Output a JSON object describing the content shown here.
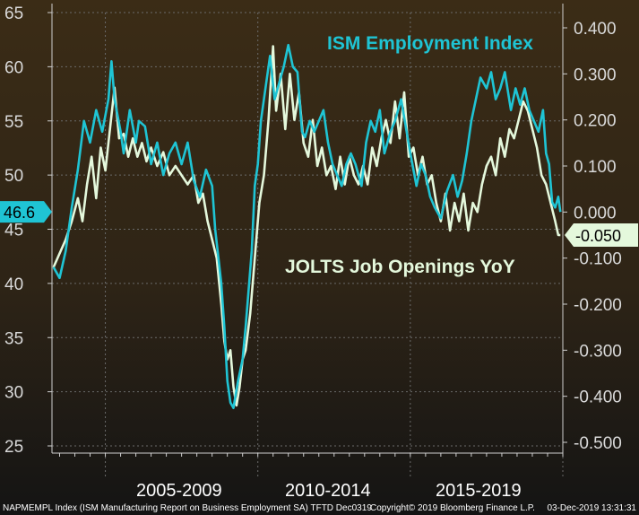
{
  "chart_data": {
    "type": "line",
    "title": "",
    "x_groups": [
      "2005-2009",
      "2010-2014",
      "2015-2019"
    ],
    "x_range": [
      2003.25,
      2020.0
    ],
    "left_axis": {
      "ticks": [
        "65",
        "60",
        "55",
        "50",
        "45",
        "40",
        "35",
        "30",
        "25"
      ],
      "range": [
        25,
        65
      ]
    },
    "right_axis": {
      "ticks": [
        "0.400",
        "0.300",
        "0.200",
        "0.100",
        "0.000",
        "-0.100",
        "-0.200",
        "-0.300",
        "-0.400",
        "-0.500"
      ],
      "range": [
        -0.5,
        0.4
      ]
    },
    "series": [
      {
        "name": "ISM Employment Index",
        "axis": "left",
        "color": "#1fc4d4",
        "last_value_label": "46.6",
        "points": [
          [
            2003.3,
            41.5
          ],
          [
            2003.5,
            40.5
          ],
          [
            2003.7,
            43
          ],
          [
            2003.9,
            47
          ],
          [
            2004.1,
            50.5
          ],
          [
            2004.3,
            55
          ],
          [
            2004.5,
            53
          ],
          [
            2004.7,
            56
          ],
          [
            2004.9,
            54
          ],
          [
            2005.1,
            57
          ],
          [
            2005.2,
            60.5
          ],
          [
            2005.3,
            57
          ],
          [
            2005.5,
            54
          ],
          [
            2005.6,
            52
          ],
          [
            2005.8,
            56
          ],
          [
            2006.0,
            53
          ],
          [
            2006.1,
            55
          ],
          [
            2006.3,
            54.5
          ],
          [
            2006.5,
            51
          ],
          [
            2006.7,
            53
          ],
          [
            2006.9,
            50
          ],
          [
            2007.1,
            52
          ],
          [
            2007.3,
            53
          ],
          [
            2007.5,
            51
          ],
          [
            2007.7,
            53
          ],
          [
            2007.9,
            49.5
          ],
          [
            2008.1,
            48
          ],
          [
            2008.3,
            50.5
          ],
          [
            2008.5,
            49
          ],
          [
            2008.6,
            45
          ],
          [
            2008.8,
            40
          ],
          [
            2008.9,
            36
          ],
          [
            2009.0,
            31
          ],
          [
            2009.1,
            29
          ],
          [
            2009.2,
            28.5
          ],
          [
            2009.35,
            31
          ],
          [
            2009.5,
            33
          ],
          [
            2009.6,
            36
          ],
          [
            2009.8,
            43
          ],
          [
            2009.9,
            49
          ],
          [
            2010.0,
            51
          ],
          [
            2010.1,
            55
          ],
          [
            2010.25,
            58
          ],
          [
            2010.4,
            61
          ],
          [
            2010.55,
            57
          ],
          [
            2010.7,
            58.5
          ],
          [
            2010.85,
            60
          ],
          [
            2011.0,
            62
          ],
          [
            2011.15,
            60
          ],
          [
            2011.3,
            59.5
          ],
          [
            2011.45,
            54
          ],
          [
            2011.55,
            53.5
          ],
          [
            2011.7,
            55
          ],
          [
            2011.85,
            54
          ],
          [
            2012.0,
            55
          ],
          [
            2012.15,
            56
          ],
          [
            2012.3,
            53
          ],
          [
            2012.45,
            51
          ],
          [
            2012.6,
            50
          ],
          [
            2012.75,
            49
          ],
          [
            2012.9,
            51
          ],
          [
            2013.05,
            52
          ],
          [
            2013.2,
            51
          ],
          [
            2013.4,
            49
          ],
          [
            2013.55,
            53
          ],
          [
            2013.7,
            55
          ],
          [
            2013.85,
            54
          ],
          [
            2014.0,
            56
          ],
          [
            2014.15,
            52
          ],
          [
            2014.35,
            54
          ],
          [
            2014.5,
            55
          ],
          [
            2014.7,
            57
          ],
          [
            2014.85,
            54.5
          ],
          [
            2015.0,
            52
          ],
          [
            2015.2,
            49
          ],
          [
            2015.35,
            51
          ],
          [
            2015.5,
            50
          ],
          [
            2015.65,
            48
          ],
          [
            2015.8,
            47
          ],
          [
            2016.0,
            46
          ],
          [
            2016.2,
            48.5
          ],
          [
            2016.4,
            50
          ],
          [
            2016.55,
            48
          ],
          [
            2016.7,
            49.5
          ],
          [
            2016.85,
            52
          ],
          [
            2017.0,
            55
          ],
          [
            2017.15,
            57
          ],
          [
            2017.3,
            59
          ],
          [
            2017.5,
            58
          ],
          [
            2017.65,
            59.5
          ],
          [
            2017.8,
            57
          ],
          [
            2017.95,
            58
          ],
          [
            2018.1,
            59.5
          ],
          [
            2018.3,
            56
          ],
          [
            2018.45,
            58
          ],
          [
            2018.6,
            56.5
          ],
          [
            2018.75,
            58
          ],
          [
            2018.9,
            56
          ],
          [
            2019.05,
            55
          ],
          [
            2019.2,
            54
          ],
          [
            2019.35,
            56
          ],
          [
            2019.45,
            52
          ],
          [
            2019.55,
            51
          ],
          [
            2019.65,
            47.5
          ],
          [
            2019.75,
            47
          ],
          [
            2019.85,
            48
          ],
          [
            2019.92,
            46.6
          ]
        ]
      },
      {
        "name": "JOLTS Job Openings YoY",
        "axis": "right",
        "color": "#e4f8dc",
        "last_value_label": "-0.050",
        "points": [
          [
            2003.3,
            -0.12
          ],
          [
            2003.5,
            -0.09
          ],
          [
            2003.7,
            -0.06
          ],
          [
            2003.9,
            -0.02
          ],
          [
            2004.1,
            0.03
          ],
          [
            2004.25,
            -0.02
          ],
          [
            2004.4,
            0.06
          ],
          [
            2004.55,
            0.12
          ],
          [
            2004.7,
            0.03
          ],
          [
            2004.85,
            0.14
          ],
          [
            2005.0,
            0.09
          ],
          [
            2005.15,
            0.18
          ],
          [
            2005.3,
            0.27
          ],
          [
            2005.45,
            0.16
          ],
          [
            2005.6,
            0.17
          ],
          [
            2005.75,
            0.12
          ],
          [
            2005.9,
            0.16
          ],
          [
            2006.05,
            0.12
          ],
          [
            2006.2,
            0.15
          ],
          [
            2006.35,
            0.11
          ],
          [
            2006.5,
            0.14
          ],
          [
            2006.7,
            0.1
          ],
          [
            2006.9,
            0.13
          ],
          [
            2007.1,
            0.08
          ],
          [
            2007.3,
            0.1
          ],
          [
            2007.5,
            0.08
          ],
          [
            2007.7,
            0.06
          ],
          [
            2007.9,
            0.08
          ],
          [
            2008.05,
            0.02
          ],
          [
            2008.2,
            0.04
          ],
          [
            2008.35,
            -0.02
          ],
          [
            2008.5,
            -0.06
          ],
          [
            2008.65,
            -0.1
          ],
          [
            2008.8,
            -0.2
          ],
          [
            2008.9,
            -0.28
          ],
          [
            2009.0,
            -0.32
          ],
          [
            2009.1,
            -0.3
          ],
          [
            2009.2,
            -0.38
          ],
          [
            2009.3,
            -0.42
          ],
          [
            2009.4,
            -0.38
          ],
          [
            2009.5,
            -0.32
          ],
          [
            2009.6,
            -0.3
          ],
          [
            2009.75,
            -0.22
          ],
          [
            2009.9,
            -0.1
          ],
          [
            2010.05,
            0.02
          ],
          [
            2010.2,
            0.08
          ],
          [
            2010.35,
            0.2
          ],
          [
            2010.5,
            0.36
          ],
          [
            2010.6,
            0.22
          ],
          [
            2010.75,
            0.3
          ],
          [
            2010.9,
            0.18
          ],
          [
            2011.05,
            0.3
          ],
          [
            2011.2,
            0.2
          ],
          [
            2011.35,
            0.26
          ],
          [
            2011.5,
            0.15
          ],
          [
            2011.65,
            0.12
          ],
          [
            2011.8,
            0.2
          ],
          [
            2011.95,
            0.1
          ],
          [
            2012.1,
            0.14
          ],
          [
            2012.25,
            0.08
          ],
          [
            2012.4,
            0.1
          ],
          [
            2012.55,
            0.05
          ],
          [
            2012.7,
            0.12
          ],
          [
            2012.85,
            0.06
          ],
          [
            2013.0,
            0.12
          ],
          [
            2013.15,
            0.08
          ],
          [
            2013.3,
            0.06
          ],
          [
            2013.45,
            0.1
          ],
          [
            2013.6,
            0.06
          ],
          [
            2013.75,
            0.14
          ],
          [
            2013.9,
            0.1
          ],
          [
            2014.05,
            0.16
          ],
          [
            2014.2,
            0.2
          ],
          [
            2014.35,
            0.15
          ],
          [
            2014.5,
            0.24
          ],
          [
            2014.65,
            0.16
          ],
          [
            2014.8,
            0.26
          ],
          [
            2014.95,
            0.12
          ],
          [
            2015.1,
            0.14
          ],
          [
            2015.25,
            0.08
          ],
          [
            2015.4,
            0.12
          ],
          [
            2015.55,
            0.06
          ],
          [
            2015.7,
            0.08
          ],
          [
            2015.85,
            0.02
          ],
          [
            2016.0,
            -0.02
          ],
          [
            2016.15,
            0.04
          ],
          [
            2016.3,
            -0.04
          ],
          [
            2016.45,
            0.02
          ],
          [
            2016.6,
            -0.02
          ],
          [
            2016.75,
            0.04
          ],
          [
            2016.9,
            -0.04
          ],
          [
            2017.05,
            0.02
          ],
          [
            2017.2,
            0.0
          ],
          [
            2017.35,
            0.06
          ],
          [
            2017.5,
            0.1
          ],
          [
            2017.65,
            0.12
          ],
          [
            2017.8,
            0.08
          ],
          [
            2017.95,
            0.16
          ],
          [
            2018.1,
            0.12
          ],
          [
            2018.25,
            0.18
          ],
          [
            2018.4,
            0.16
          ],
          [
            2018.55,
            0.2
          ],
          [
            2018.7,
            0.24
          ],
          [
            2018.85,
            0.22
          ],
          [
            2019.0,
            0.18
          ],
          [
            2019.15,
            0.14
          ],
          [
            2019.3,
            0.08
          ],
          [
            2019.45,
            0.06
          ],
          [
            2019.6,
            0.02
          ],
          [
            2019.75,
            -0.02
          ],
          [
            2019.85,
            -0.05
          ],
          [
            2019.92,
            -0.05
          ]
        ]
      }
    ],
    "annotations": [
      "ISM Employment Index",
      "JOLTS Job Openings YoY"
    ],
    "footer": {
      "source": "NAPMEMPL Index (ISM Manufacturing Report on Business Employment SA) TFTD Dec0319",
      "copyright": "Copyright© 2019 Bloomberg Finance L.P.",
      "timestamp": "03-Dec-2019 13:31:31"
    },
    "colors": {
      "background_top": "#3b2c16",
      "background_bottom": "#121212"
    }
  }
}
